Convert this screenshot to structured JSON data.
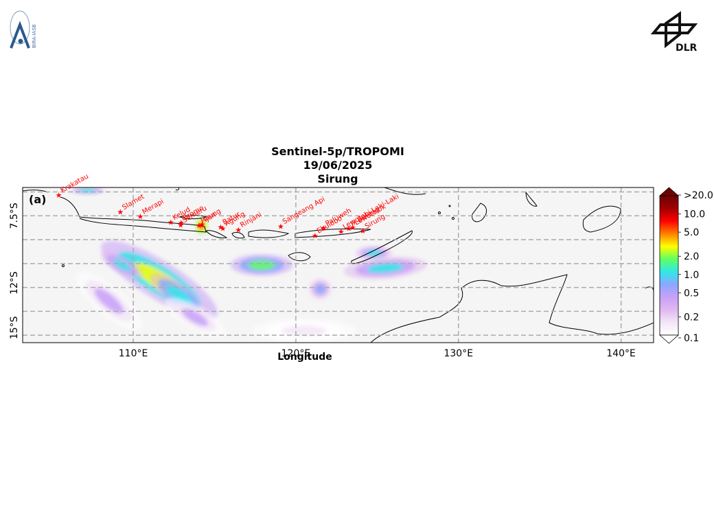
{
  "header": {
    "title_line1": "Sentinel-5p/TROPOMI",
    "title_line2": "19/06/2025",
    "title_line3": "Sirung"
  },
  "logos": {
    "left_text": "BIRA-IASB",
    "right_text": "DLR"
  },
  "chart_data": {
    "type": "heatmap",
    "panel_label": "(a)",
    "xlabel": "Longitude",
    "ylabel": "",
    "xlim": [
      103.2,
      142.0
    ],
    "ylim": [
      -16.0,
      -5.6
    ],
    "x_ticks": [
      {
        "value": 110,
        "label": "110°E"
      },
      {
        "value": 120,
        "label": "120°E"
      },
      {
        "value": 130,
        "label": "130°E"
      },
      {
        "value": 140,
        "label": "140°E"
      }
    ],
    "y_ticks": [
      {
        "value": -7.5,
        "label": "7.5°S"
      },
      {
        "value": -12,
        "label": "12°S"
      },
      {
        "value": -15,
        "label": "15°S"
      }
    ],
    "grid_lat": [
      -5.9,
      -7.5,
      -9.1,
      -10.7,
      -12.3,
      -13.9,
      -15.5
    ],
    "grid_lon": [
      110,
      120,
      130,
      140
    ],
    "colorbar": {
      "ticks": [
        {
          "value": 0.1,
          "label": "0.1"
        },
        {
          "value": 0.2,
          "label": "0.2"
        },
        {
          "value": 0.5,
          "label": "0.5"
        },
        {
          "value": 1.0,
          "label": "1.0"
        },
        {
          "value": 2.0,
          "label": "2.0"
        },
        {
          "value": 5.0,
          "label": "5.0"
        },
        {
          "value": 10.0,
          "label": "10.0"
        },
        {
          "value": 20.0,
          "label": ">20.0"
        }
      ],
      "colors": [
        "#ffffff",
        "#f3e6f7",
        "#e0b8f0",
        "#c8a0f8",
        "#8aa8ff",
        "#30e8e8",
        "#60ff60",
        "#ffff00",
        "#ff8000",
        "#ff0000",
        "#a00000",
        "#700000"
      ]
    },
    "volcanoes": [
      {
        "name": "Krakatau",
        "lon": 105.42,
        "lat": -6.1
      },
      {
        "name": "Slamet",
        "lon": 109.21,
        "lat": -7.24
      },
      {
        "name": "Merapi",
        "lon": 110.44,
        "lat": -7.54
      },
      {
        "name": "Kelud",
        "lon": 112.31,
        "lat": -7.93
      },
      {
        "name": "Semeru",
        "lon": 112.92,
        "lat": -8.11
      },
      {
        "name": "Bromo",
        "lon": 112.95,
        "lat": -7.94
      },
      {
        "name": "Raung",
        "lon": 114.04,
        "lat": -8.13
      },
      {
        "name": "Ijen",
        "lon": 114.24,
        "lat": -8.06
      },
      {
        "name": "Batur",
        "lon": 115.38,
        "lat": -8.24
      },
      {
        "name": "Agung",
        "lon": 115.51,
        "lat": -8.34
      },
      {
        "name": "Rinjani",
        "lon": 116.47,
        "lat": -8.42
      },
      {
        "name": "Sangeang Api",
        "lon": 119.07,
        "lat": -8.2
      },
      {
        "name": "Ebulobo",
        "lon": 121.18,
        "lat": -8.82
      },
      {
        "name": "Paluweh",
        "lon": 121.71,
        "lat": -8.32
      },
      {
        "name": "Lewotolok",
        "lon": 123.5,
        "lat": -8.27
      },
      {
        "name": "Lewotobi Laki-Laki",
        "lon": 122.78,
        "lat": -8.54
      },
      {
        "name": "Ili Boleng",
        "lon": 123.26,
        "lat": -8.34
      },
      {
        "name": "Sirung",
        "lon": 124.13,
        "lat": -8.51
      }
    ],
    "so2_plumes": [
      {
        "lon": 110.5,
        "lat": -11.0,
        "rx": 1.2,
        "ry": 0.55,
        "rot": 32,
        "value": 0.7
      },
      {
        "lon": 111.6,
        "lat": -11.8,
        "rx": 2.6,
        "ry": 0.8,
        "rot": 32,
        "value": 2.5
      },
      {
        "lon": 112.8,
        "lat": -12.8,
        "rx": 1.3,
        "ry": 0.5,
        "rot": 35,
        "value": 1.4
      },
      {
        "lon": 109.3,
        "lat": -10.8,
        "rx": 0.9,
        "ry": 0.35,
        "rot": 30,
        "value": 1.0
      },
      {
        "lon": 108.5,
        "lat": -13.2,
        "rx": 1.6,
        "ry": 0.6,
        "rot": 40,
        "value": 0.4
      },
      {
        "lon": 113.8,
        "lat": -14.3,
        "rx": 1.3,
        "ry": 0.5,
        "rot": 30,
        "value": 0.4
      },
      {
        "lon": 117.9,
        "lat": -10.8,
        "rx": 1.2,
        "ry": 0.45,
        "rot": 0,
        "value": 2.0
      },
      {
        "lon": 125.5,
        "lat": -11.0,
        "rx": 1.6,
        "ry": 0.45,
        "rot": -5,
        "value": 1.2
      },
      {
        "lon": 124.8,
        "lat": -10.0,
        "rx": 0.7,
        "ry": 0.3,
        "rot": 0,
        "value": 1.2
      },
      {
        "lon": 121.5,
        "lat": -12.4,
        "rx": 0.5,
        "ry": 0.5,
        "rot": 0,
        "value": 0.7
      },
      {
        "lon": 114.2,
        "lat": -8.2,
        "rx": 0.25,
        "ry": 0.35,
        "rot": 0,
        "value": 8.0
      },
      {
        "lon": 107.2,
        "lat": -5.8,
        "rx": 0.8,
        "ry": 0.2,
        "rot": 0,
        "value": 0.9
      },
      {
        "lon": 120.5,
        "lat": -15.2,
        "rx": 2.0,
        "ry": 0.5,
        "rot": 0,
        "value": 0.2
      }
    ]
  }
}
